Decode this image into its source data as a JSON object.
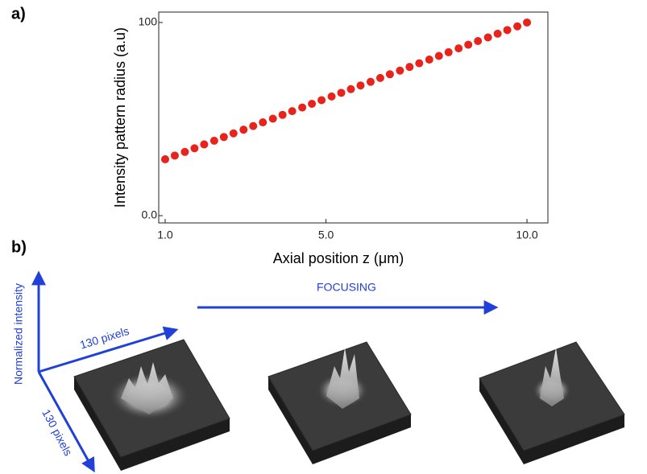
{
  "chart_data": {
    "type": "scatter",
    "panel_label": "a)",
    "x_label": "Axial position z (μm)",
    "y_label": "Intensity pattern radius (a.u)",
    "color": "#e8231c",
    "x": [
      1.0,
      1.24,
      1.49,
      1.73,
      1.97,
      2.22,
      2.46,
      2.7,
      2.95,
      3.19,
      3.43,
      3.68,
      3.92,
      4.16,
      4.41,
      4.65,
      4.89,
      5.14,
      5.38,
      5.62,
      5.86,
      6.11,
      6.35,
      6.59,
      6.84,
      7.08,
      7.32,
      7.57,
      7.81,
      8.05,
      8.3,
      8.54,
      8.78,
      9.03,
      9.27,
      9.51,
      9.76,
      10.0
    ],
    "values": [
      29.2,
      31.1,
      33.0,
      34.9,
      36.9,
      38.8,
      40.7,
      42.6,
      44.5,
      46.4,
      48.3,
      50.2,
      52.2,
      54.1,
      56.0,
      57.9,
      59.8,
      61.7,
      63.6,
      65.5,
      67.4,
      69.3,
      71.3,
      73.2,
      75.1,
      77.0,
      78.9,
      80.8,
      82.7,
      84.6,
      86.6,
      88.5,
      90.4,
      92.3,
      94.2,
      96.1,
      98.0,
      100
    ],
    "xlim": [
      0.84,
      10.52
    ],
    "ylim": [
      -3.75,
      105.4
    ],
    "xticks": [
      {
        "value": 1,
        "label": "1.0"
      },
      {
        "value": 5,
        "label": "5.0"
      },
      {
        "value": 10,
        "label": "10.0"
      }
    ],
    "yticks": [
      {
        "value": 0,
        "label": "0.0"
      },
      100
    ]
  },
  "panel_b": {
    "panel_label": "b)",
    "arrow_label": "FOCUSING",
    "axis_vertical": "Normalized intensity",
    "axis_width": "130 pixels",
    "axis_depth": "130 pixels"
  }
}
